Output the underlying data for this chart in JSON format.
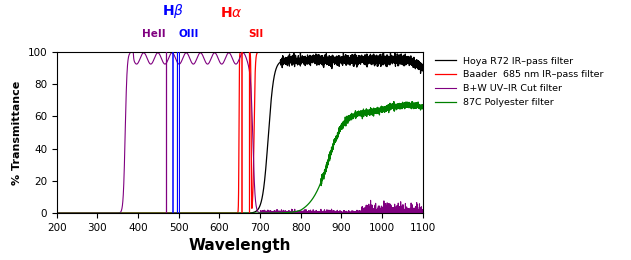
{
  "xlabel": "Wavelength",
  "ylabel": "% Transmittance",
  "xlim": [
    200,
    1100
  ],
  "ylim": [
    0,
    100
  ],
  "xticks": [
    200,
    300,
    400,
    500,
    600,
    700,
    800,
    900,
    1000,
    1100
  ],
  "yticks": [
    0,
    20,
    40,
    60,
    80,
    100
  ],
  "filters": {
    "hoya_r72": {
      "color": "black",
      "label": "Hoya R72 IR–pass filter"
    },
    "baader_685": {
      "color": "red",
      "label": "Baader  685 nm IR–pass filter"
    },
    "bw_uv_ir": {
      "color": "purple",
      "label": "B+W UV–IR Cut filter"
    },
    "polyester_87c": {
      "color": "green",
      "label": "87C Polyester filter"
    }
  },
  "emission_lines": [
    {
      "wl": 468,
      "color": "purple",
      "lw": 0.9
    },
    {
      "wl": 486,
      "color": "blue",
      "lw": 1.1
    },
    {
      "wl": 496,
      "color": "blue",
      "lw": 0.9
    },
    {
      "wl": 501,
      "color": "blue",
      "lw": 0.7
    },
    {
      "wl": 656,
      "color": "red",
      "lw": 1.1
    },
    {
      "wl": 672,
      "color": "red",
      "lw": 0.9
    }
  ]
}
